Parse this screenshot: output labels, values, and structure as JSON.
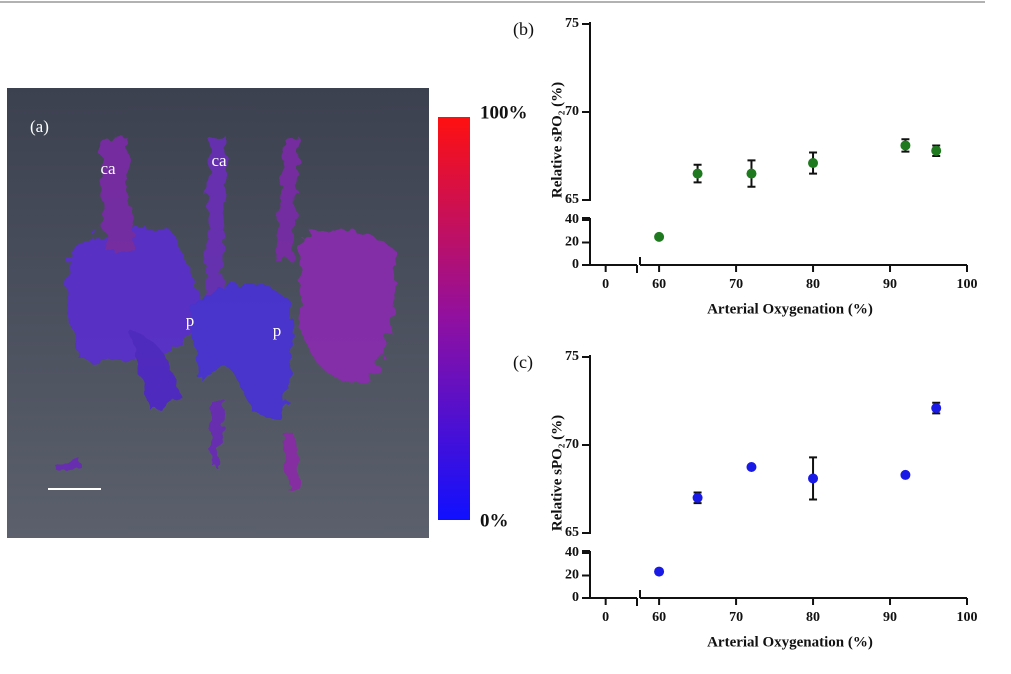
{
  "image_panel": {
    "label": "(a)",
    "annotations": [
      "ca",
      "ca",
      "p",
      "p"
    ],
    "colorbar": {
      "max_label": "100%",
      "min_label": "0%"
    }
  },
  "chart_data": [
    {
      "type": "scatter",
      "label": "(b)",
      "xlabel": "Arterial Oxygenation (%)",
      "ylabel": "Relative sPO₂ (%)",
      "x": [
        60,
        65,
        72,
        80,
        92,
        96
      ],
      "values": [
        25,
        66.5,
        66.5,
        67.1,
        68.1,
        67.8
      ],
      "errors": [
        null,
        0.5,
        0.75,
        0.6,
        0.35,
        0.3
      ],
      "color": "#1f7a1f",
      "xlim": [
        [
          -2,
          4
        ],
        [
          57,
          100
        ]
      ],
      "xticks": [
        [
          0
        ],
        [
          60,
          70,
          80,
          90,
          100
        ]
      ],
      "ylim": [
        [
          0,
          40
        ],
        [
          65,
          75
        ]
      ],
      "yticks": [
        [
          0,
          20,
          40
        ],
        [
          65,
          70,
          75
        ]
      ]
    },
    {
      "type": "scatter",
      "label": "(c)",
      "xlabel": "Arterial Oxygenation (%)",
      "ylabel": "Relative sPO₂ (%)",
      "x": [
        60,
        65,
        72,
        80,
        92,
        96
      ],
      "values": [
        23.5,
        67.0,
        68.75,
        68.1,
        68.3,
        72.1
      ],
      "errors": [
        null,
        0.3,
        null,
        1.2,
        null,
        0.3
      ],
      "color": "#1a1ae6",
      "xlim": [
        [
          -2,
          4
        ],
        [
          57,
          100
        ]
      ],
      "xticks": [
        [
          0
        ],
        [
          60,
          70,
          80,
          90,
          100
        ]
      ],
      "ylim": [
        [
          0,
          40
        ],
        [
          65,
          75
        ]
      ],
      "yticks": [
        [
          0,
          20,
          40
        ],
        [
          65,
          70,
          75
        ]
      ]
    }
  ]
}
